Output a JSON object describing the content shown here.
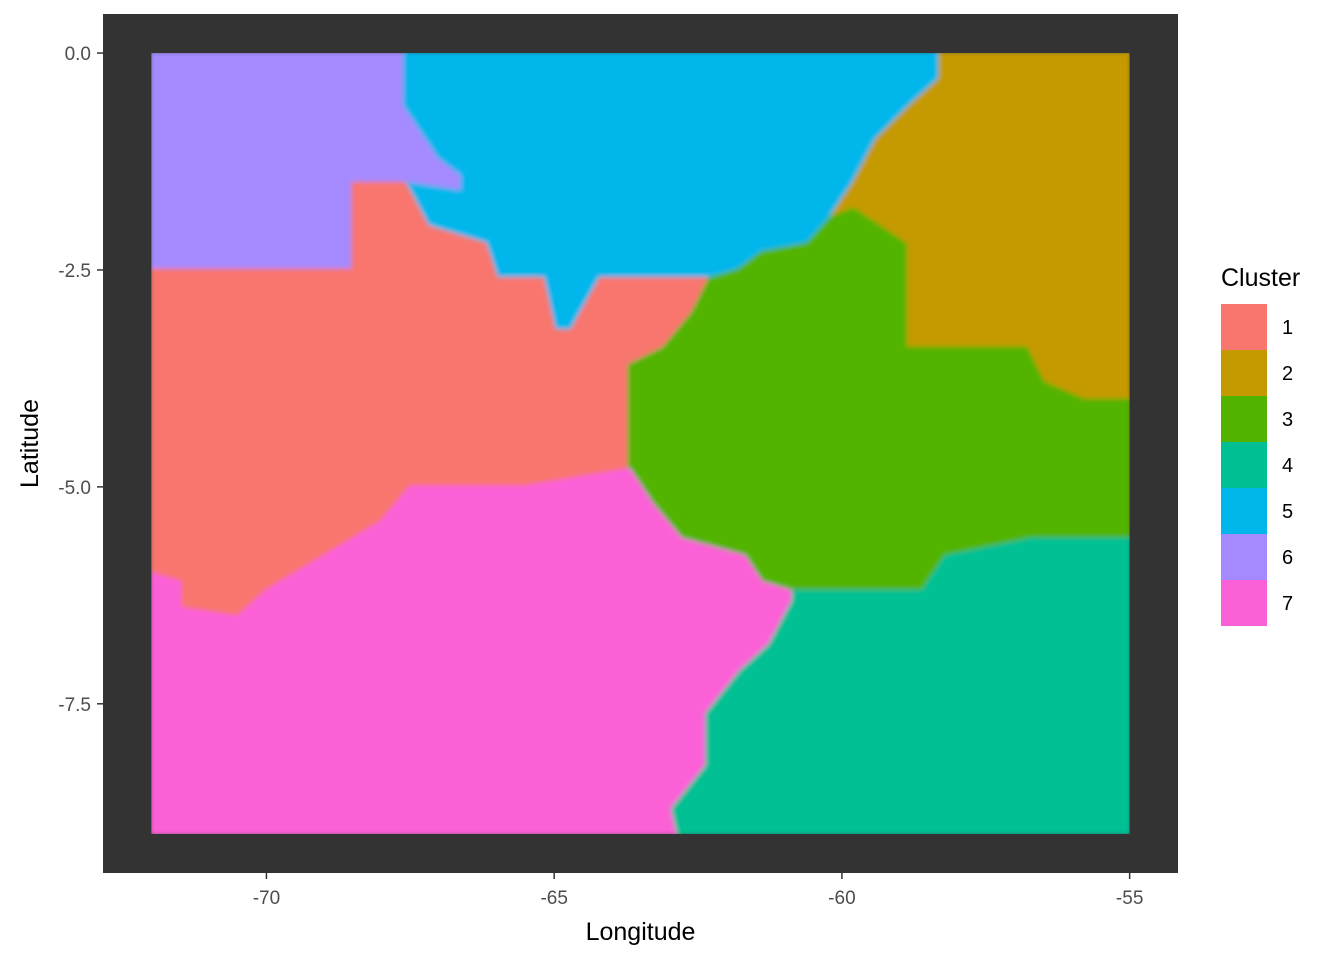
{
  "chart_data": {
    "type": "heatmap",
    "title": "",
    "xlabel": "Longitude",
    "ylabel": "Latitude",
    "xlim": [
      -72.84,
      -54.16
    ],
    "ylim": [
      -9.45,
      0.45
    ],
    "grid": false,
    "panel_background": "#333333",
    "x_ticks": [
      {
        "value": -70,
        "label": "-70"
      },
      {
        "value": -65,
        "label": "-65"
      },
      {
        "value": -60,
        "label": "-60"
      },
      {
        "value": -55,
        "label": "-55"
      }
    ],
    "y_ticks": [
      {
        "value": 0,
        "label": "0.0"
      },
      {
        "value": -2.5,
        "label": "-2.5"
      },
      {
        "value": -5,
        "label": "-5.0"
      },
      {
        "value": -7.5,
        "label": "-7.5"
      }
    ],
    "legend": {
      "title": "Cluster",
      "position": "right",
      "items": [
        {
          "label": "1",
          "color": "#F8766D"
        },
        {
          "label": "2",
          "color": "#C49A00"
        },
        {
          "label": "3",
          "color": "#53B400"
        },
        {
          "label": "4",
          "color": "#00C094"
        },
        {
          "label": "5",
          "color": "#00B6EB"
        },
        {
          "label": "6",
          "color": "#A58AFF"
        },
        {
          "label": "7",
          "color": "#FB61D7"
        }
      ]
    },
    "regions": [
      {
        "cluster": "6",
        "points": [
          [
            -72,
            0
          ],
          [
            -67.6,
            0
          ],
          [
            -67.6,
            -0.6
          ],
          [
            -67,
            -1.2
          ],
          [
            -66.6,
            -1.4
          ],
          [
            -66.6,
            -1.6
          ],
          [
            -67.6,
            -1.5
          ],
          [
            -68.5,
            -1.5
          ],
          [
            -68.5,
            -2.5
          ],
          [
            -72,
            -2.5
          ]
        ]
      },
      {
        "cluster": "5",
        "points": [
          [
            -67.6,
            0
          ],
          [
            -58.3,
            0
          ],
          [
            -58.3,
            -0.3
          ],
          [
            -58.8,
            -0.6
          ],
          [
            -59.4,
            -1.0
          ],
          [
            -59.8,
            -1.5
          ],
          [
            -60.2,
            -1.9
          ],
          [
            -60.6,
            -2.2
          ],
          [
            -61.4,
            -2.3
          ],
          [
            -61.8,
            -2.5
          ],
          [
            -62.3,
            -2.6
          ],
          [
            -64.2,
            -2.6
          ],
          [
            -64.7,
            -3.2
          ],
          [
            -65.0,
            -3.2
          ],
          [
            -65.2,
            -2.6
          ],
          [
            -66,
            -2.6
          ],
          [
            -66.2,
            -2.2
          ],
          [
            -67.2,
            -2.0
          ],
          [
            -67.6,
            -1.5
          ],
          [
            -66.6,
            -1.6
          ],
          [
            -66.6,
            -1.4
          ],
          [
            -67,
            -1.2
          ],
          [
            -67.6,
            -0.6
          ]
        ]
      },
      {
        "cluster": "2",
        "points": [
          [
            -58.3,
            0
          ],
          [
            -55,
            0
          ],
          [
            -55,
            -4.0
          ],
          [
            -55.8,
            -4.0
          ],
          [
            -56.5,
            -3.8
          ],
          [
            -56.8,
            -3.4
          ],
          [
            -58.9,
            -3.4
          ],
          [
            -58.9,
            -2.2
          ],
          [
            -59.8,
            -1.8
          ],
          [
            -60.2,
            -1.9
          ],
          [
            -59.8,
            -1.5
          ],
          [
            -59.4,
            -1.0
          ],
          [
            -58.8,
            -0.6
          ],
          [
            -58.3,
            -0.3
          ]
        ]
      },
      {
        "cluster": "1",
        "points": [
          [
            -72,
            -2.5
          ],
          [
            -68.5,
            -2.5
          ],
          [
            -68.5,
            -1.5
          ],
          [
            -67.6,
            -1.5
          ],
          [
            -67.2,
            -2.0
          ],
          [
            -66.2,
            -2.2
          ],
          [
            -66,
            -2.6
          ],
          [
            -65.2,
            -2.6
          ],
          [
            -65.0,
            -3.2
          ],
          [
            -64.7,
            -3.2
          ],
          [
            -64.2,
            -2.6
          ],
          [
            -62.3,
            -2.6
          ],
          [
            -62.6,
            -3.0
          ],
          [
            -63.1,
            -3.4
          ],
          [
            -63.7,
            -3.6
          ],
          [
            -63.7,
            -4.8
          ],
          [
            -65.5,
            -5.0
          ],
          [
            -67.5,
            -5.0
          ],
          [
            -68,
            -5.4
          ],
          [
            -69,
            -5.8
          ],
          [
            -70,
            -6.2
          ],
          [
            -70.5,
            -6.5
          ],
          [
            -71.5,
            -6.4
          ],
          [
            -71.5,
            -6.1
          ],
          [
            -72,
            -6.0
          ]
        ]
      },
      {
        "cluster": "3",
        "points": [
          [
            -62.3,
            -2.6
          ],
          [
            -61.8,
            -2.5
          ],
          [
            -61.4,
            -2.3
          ],
          [
            -60.6,
            -2.2
          ],
          [
            -60.2,
            -1.9
          ],
          [
            -59.8,
            -1.8
          ],
          [
            -58.9,
            -2.2
          ],
          [
            -58.9,
            -3.4
          ],
          [
            -56.8,
            -3.4
          ],
          [
            -56.5,
            -3.8
          ],
          [
            -55.8,
            -4.0
          ],
          [
            -55,
            -4.0
          ],
          [
            -55,
            -5.6
          ],
          [
            -56.7,
            -5.6
          ],
          [
            -58.2,
            -5.8
          ],
          [
            -58.6,
            -6.2
          ],
          [
            -60.9,
            -6.2
          ],
          [
            -61.4,
            -6.1
          ],
          [
            -61.7,
            -5.8
          ],
          [
            -62.8,
            -5.6
          ],
          [
            -63.3,
            -5.2
          ],
          [
            -63.7,
            -4.8
          ],
          [
            -63.7,
            -3.6
          ],
          [
            -63.1,
            -3.4
          ],
          [
            -62.6,
            -3.0
          ]
        ]
      },
      {
        "cluster": "4",
        "points": [
          [
            -55,
            -5.6
          ],
          [
            -55,
            -9
          ],
          [
            -62.9,
            -9
          ],
          [
            -63.0,
            -8.7
          ],
          [
            -62.4,
            -8.2
          ],
          [
            -62.4,
            -7.6
          ],
          [
            -61.8,
            -7.1
          ],
          [
            -61.3,
            -6.8
          ],
          [
            -60.9,
            -6.3
          ],
          [
            -60.9,
            -6.2
          ],
          [
            -58.6,
            -6.2
          ],
          [
            -58.2,
            -5.8
          ],
          [
            -56.7,
            -5.6
          ]
        ]
      },
      {
        "cluster": "7",
        "points": [
          [
            -72,
            -6.0
          ],
          [
            -71.5,
            -6.1
          ],
          [
            -71.5,
            -6.4
          ],
          [
            -70.5,
            -6.5
          ],
          [
            -70,
            -6.2
          ],
          [
            -69,
            -5.8
          ],
          [
            -68,
            -5.4
          ],
          [
            -67.5,
            -5.0
          ],
          [
            -65.5,
            -5.0
          ],
          [
            -63.7,
            -4.8
          ],
          [
            -63.3,
            -5.2
          ],
          [
            -62.8,
            -5.6
          ],
          [
            -61.7,
            -5.8
          ],
          [
            -61.4,
            -6.1
          ],
          [
            -60.9,
            -6.2
          ],
          [
            -60.9,
            -6.3
          ],
          [
            -61.3,
            -6.8
          ],
          [
            -61.8,
            -7.1
          ],
          [
            -62.4,
            -7.6
          ],
          [
            -62.4,
            -8.2
          ],
          [
            -63.0,
            -8.7
          ],
          [
            -62.9,
            -9
          ],
          [
            -72,
            -9
          ]
        ]
      }
    ]
  }
}
